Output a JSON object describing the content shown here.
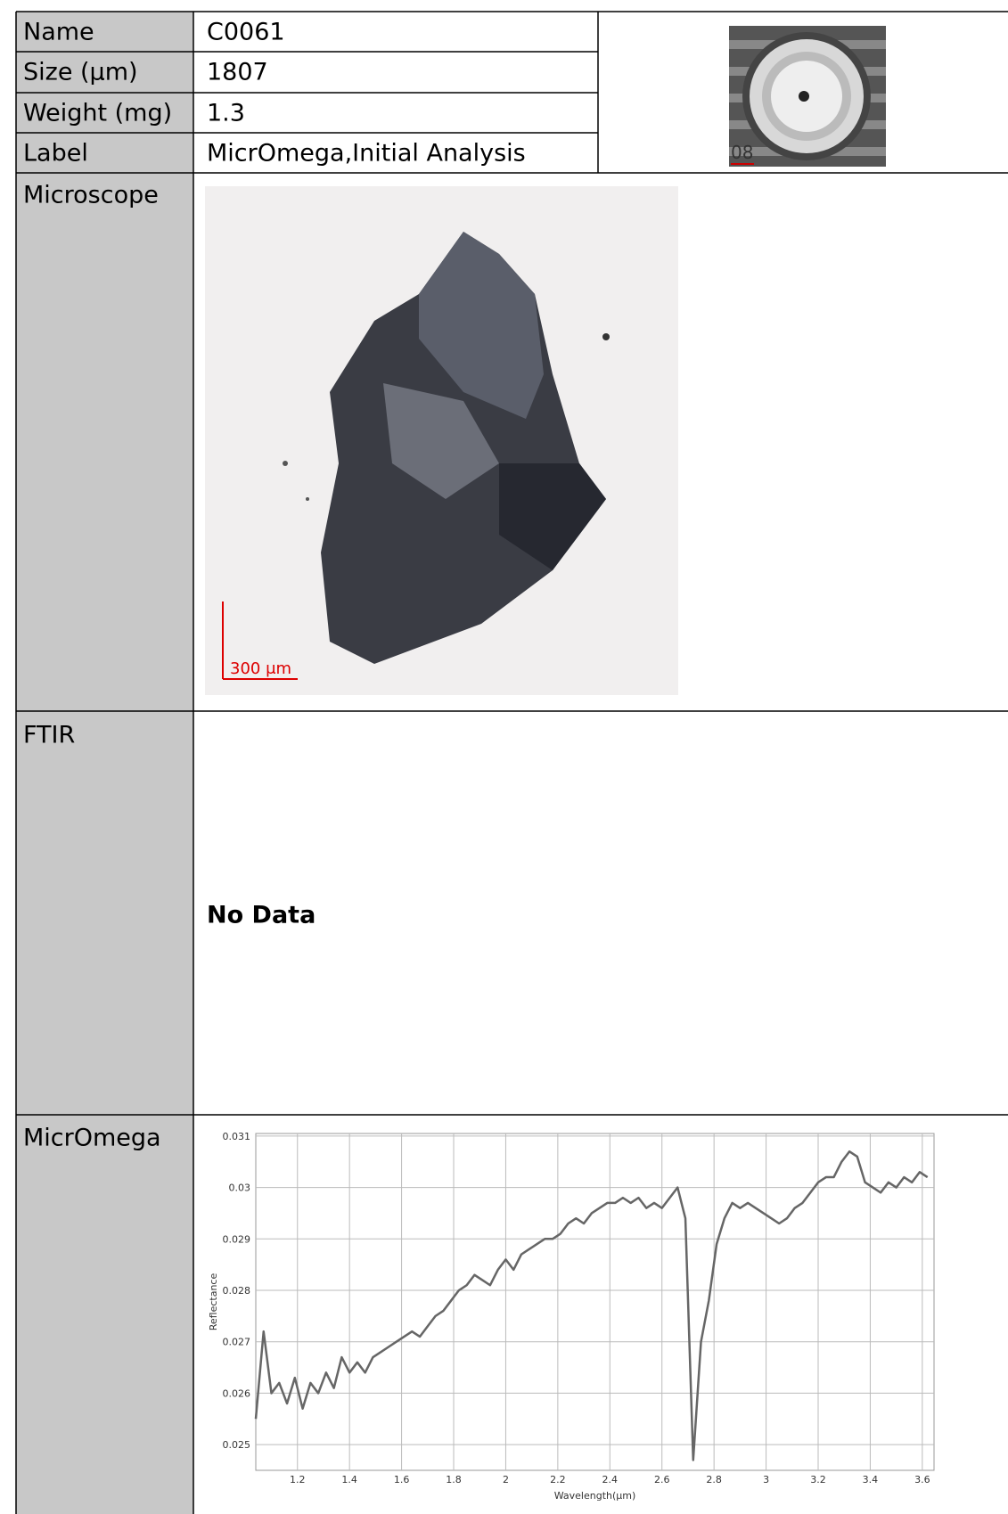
{
  "table": {
    "rows": [
      [
        "Name",
        "C0061"
      ],
      [
        "Size (µm)",
        "1807"
      ],
      [
        "Weight (mg)",
        "1.3"
      ],
      [
        "Label",
        "MicrOmega,Initial Analysis"
      ],
      [
        "Microscope"
      ],
      [
        "FTIR",
        "No Data"
      ],
      [
        "MicrOmega"
      ]
    ]
  },
  "images": {
    "holder_label": "08",
    "scale_bar": "300 μm"
  },
  "chart_data": {
    "type": "line",
    "xlabel": "Wavelength(µm)",
    "ylabel": "Reflectance",
    "color": "#666666",
    "grid": true,
    "xlim": [
      1.04,
      3.645
    ],
    "ylim": [
      0.0245,
      0.03105
    ],
    "xticks": [
      1.2,
      1.4,
      1.6,
      1.8,
      2,
      2.2,
      2.4,
      2.6,
      2.8,
      3,
      3.2,
      3.4,
      3.6
    ],
    "yticks": [
      0.025,
      0.026,
      0.027,
      0.028,
      0.029,
      0.03,
      0.031
    ],
    "x": [
      1.04,
      1.07,
      1.1,
      1.13,
      1.16,
      1.19,
      1.22,
      1.25,
      1.28,
      1.31,
      1.34,
      1.37,
      1.4,
      1.43,
      1.46,
      1.49,
      1.52,
      1.55,
      1.58,
      1.61,
      1.64,
      1.67,
      1.7,
      1.73,
      1.76,
      1.79,
      1.82,
      1.85,
      1.88,
      1.91,
      1.94,
      1.97,
      2.0,
      2.03,
      2.06,
      2.09,
      2.12,
      2.15,
      2.18,
      2.21,
      2.24,
      2.27,
      2.3,
      2.33,
      2.36,
      2.39,
      2.42,
      2.45,
      2.48,
      2.51,
      2.54,
      2.57,
      2.6,
      2.63,
      2.66,
      2.69,
      2.72,
      2.75,
      2.78,
      2.81,
      2.84,
      2.87,
      2.9,
      2.93,
      2.96,
      2.99,
      3.02,
      3.05,
      3.08,
      3.11,
      3.14,
      3.17,
      3.2,
      3.23,
      3.26,
      3.29,
      3.32,
      3.35,
      3.38,
      3.41,
      3.44,
      3.47,
      3.5,
      3.53,
      3.56,
      3.59,
      3.62
    ],
    "values": [
      0.0255,
      0.0272,
      0.026,
      0.0262,
      0.0258,
      0.0263,
      0.0257,
      0.0262,
      0.026,
      0.0264,
      0.0261,
      0.0267,
      0.0264,
      0.0266,
      0.0264,
      0.0267,
      0.0268,
      0.0269,
      0.027,
      0.0271,
      0.0272,
      0.0271,
      0.0273,
      0.0275,
      0.0276,
      0.0278,
      0.028,
      0.0281,
      0.0283,
      0.0282,
      0.0281,
      0.0284,
      0.0286,
      0.0284,
      0.0287,
      0.0288,
      0.0289,
      0.029,
      0.029,
      0.0291,
      0.0293,
      0.0294,
      0.0293,
      0.0295,
      0.0296,
      0.0297,
      0.0297,
      0.0298,
      0.0297,
      0.0298,
      0.0296,
      0.0297,
      0.0296,
      0.0298,
      0.03,
      0.0294,
      0.0247,
      0.027,
      0.0278,
      0.0289,
      0.0294,
      0.0297,
      0.0296,
      0.0297,
      0.0296,
      0.0295,
      0.0294,
      0.0293,
      0.0294,
      0.0296,
      0.0297,
      0.0299,
      0.0301,
      0.0302,
      0.0302,
      0.0305,
      0.0307,
      0.0306,
      0.0301,
      0.03,
      0.0299,
      0.0301,
      0.03,
      0.0302,
      0.0301,
      0.0303,
      0.0302
    ]
  }
}
